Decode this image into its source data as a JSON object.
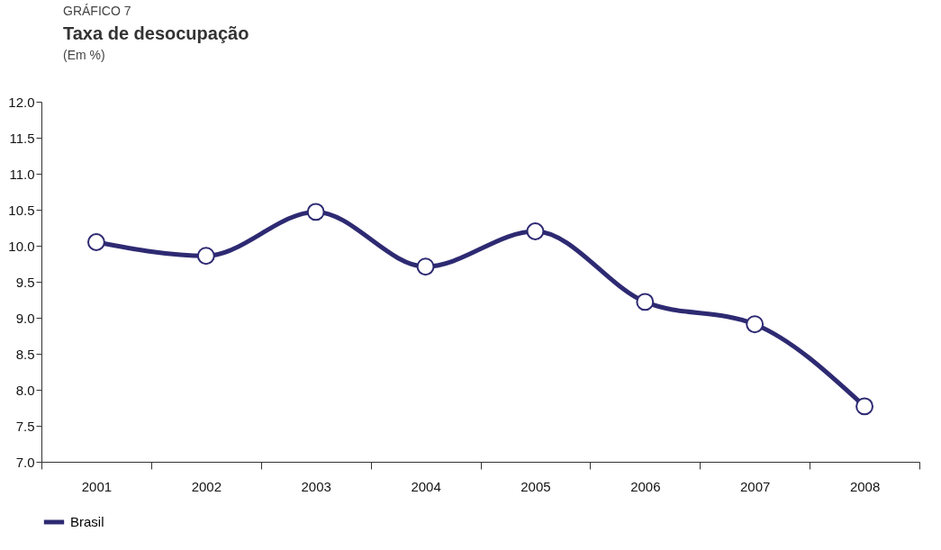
{
  "chart_data": {
    "type": "line",
    "title": "Taxa de desocupação",
    "subtitle": "(Em %)",
    "annotations": [
      "GRÁFICO 7"
    ],
    "categories": [
      "2001",
      "2002",
      "2003",
      "2004",
      "2005",
      "2006",
      "2007",
      "2008"
    ],
    "series": [
      {
        "name": "Brasil",
        "color": "#2e2a72",
        "values": [
          10.05,
          9.86,
          10.47,
          9.71,
          10.2,
          9.22,
          8.91,
          7.77
        ]
      }
    ],
    "ylim": [
      7,
      12
    ],
    "yticks": [
      {
        "value": 7,
        "label": "7.0"
      },
      {
        "value": 7.5,
        "label": "7.5"
      },
      {
        "value": 8,
        "label": "8.0"
      },
      {
        "value": 8.5,
        "label": "8.5"
      },
      {
        "value": 9,
        "label": "9.0"
      },
      {
        "value": 9.5,
        "label": "9.5"
      },
      {
        "value": 10,
        "label": "10.0"
      },
      {
        "value": 10.5,
        "label": "10.5"
      },
      {
        "value": 11,
        "label": "11.0"
      },
      {
        "value": 11.5,
        "label": "11.5"
      },
      {
        "value": 12,
        "label": "12.0"
      }
    ],
    "grid": false,
    "legend": "bottom",
    "marker": "circle",
    "line_style": "solid"
  }
}
